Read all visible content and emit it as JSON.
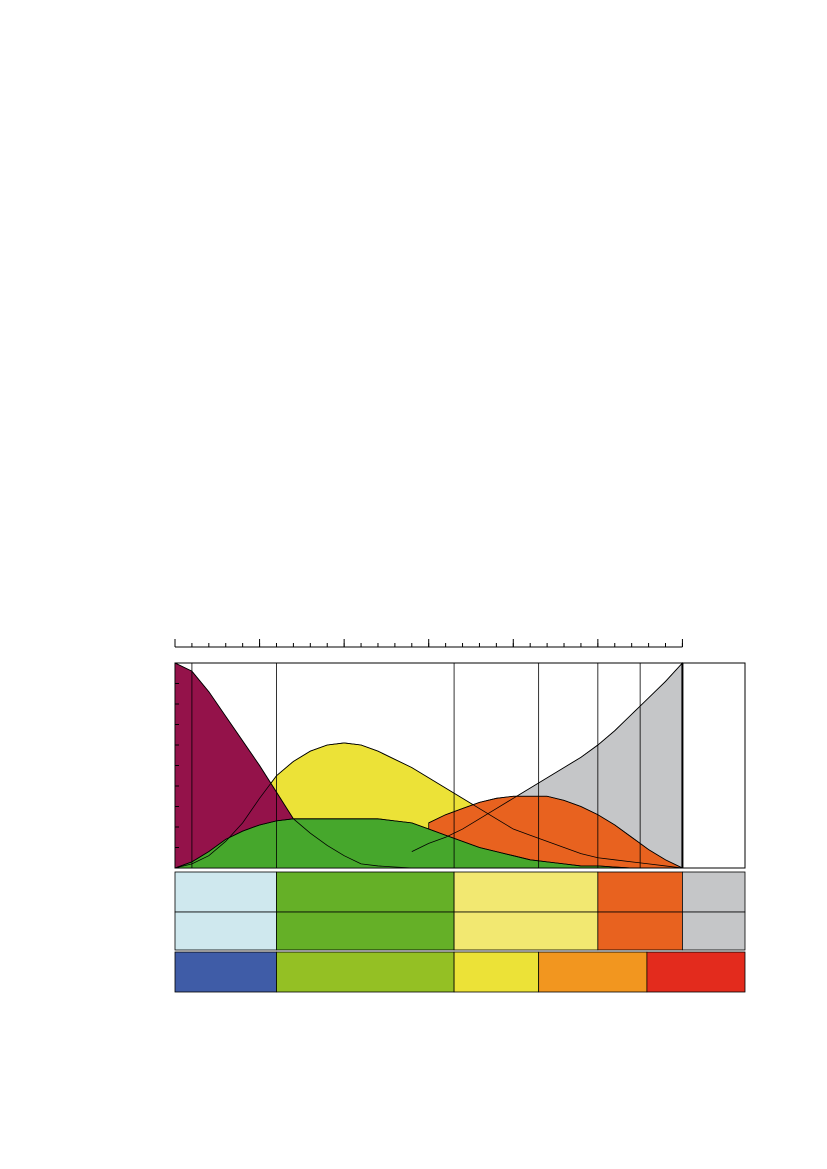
{
  "chart_data": {
    "type": "area",
    "x": [
      0,
      1,
      2,
      3,
      4,
      5,
      6,
      7,
      8,
      9,
      10,
      11,
      12,
      13,
      14,
      15,
      16,
      17,
      18,
      19,
      20,
      21,
      22,
      23,
      24,
      25,
      26,
      27,
      28,
      29,
      30
    ],
    "series": [
      {
        "color": "#c5c6c8",
        "values": [
          null,
          null,
          null,
          null,
          null,
          null,
          null,
          null,
          null,
          null,
          null,
          null,
          null,
          null,
          8,
          12,
          15,
          19,
          24,
          29,
          34,
          39,
          44,
          49,
          54,
          60,
          67,
          75,
          83,
          91,
          100
        ]
      },
      {
        "color": "#ece237",
        "values": [
          0,
          2,
          6,
          13,
          22,
          34,
          45,
          52,
          57,
          60,
          61,
          60,
          57,
          53,
          49,
          44,
          39,
          34,
          29,
          24,
          19,
          16,
          13,
          10,
          7,
          5,
          4,
          3,
          2,
          1,
          0
        ]
      },
      {
        "color": "#94124a",
        "values": [
          100,
          96,
          86,
          74,
          62,
          50,
          37,
          24,
          17,
          11,
          6,
          2,
          1,
          0.5,
          0,
          0,
          0,
          0,
          0,
          0,
          0,
          0,
          0,
          0,
          0,
          0,
          0,
          0,
          0,
          0,
          0
        ]
      },
      {
        "color": "#e8621f",
        "values": [
          null,
          null,
          null,
          null,
          null,
          null,
          null,
          null,
          null,
          null,
          null,
          null,
          null,
          null,
          null,
          22,
          26,
          29,
          32,
          34,
          35,
          35,
          35,
          33,
          30,
          26,
          21,
          15,
          9,
          4,
          0
        ]
      },
      {
        "color": "#46a72c",
        "values": [
          0,
          3,
          8,
          14,
          18,
          21,
          23,
          24,
          24,
          24,
          24,
          24,
          24,
          23,
          22,
          19,
          16,
          13,
          10,
          8,
          6,
          4,
          3,
          2,
          1,
          1,
          0.5,
          0,
          0,
          0,
          0
        ]
      }
    ],
    "xlim": [
      0,
      33.7
    ],
    "ylim": [
      0,
      100
    ],
    "xticks": [
      0,
      1,
      2,
      3,
      4,
      5,
      6,
      7,
      8,
      9,
      10,
      11,
      12,
      13,
      14,
      15,
      16,
      17,
      18,
      19,
      20,
      21,
      22,
      23,
      24,
      25,
      26,
      27,
      28,
      29,
      30
    ],
    "xticks_major": [
      0,
      5,
      10,
      15,
      20,
      25,
      30
    ],
    "yticks": [
      0,
      10,
      20,
      30,
      40,
      50,
      60,
      70,
      80,
      90,
      100
    ],
    "vlines": [
      1,
      6,
      16.5,
      21.5,
      25,
      27.5,
      30
    ],
    "bands": [
      {
        "edges": [
          0,
          6,
          16.5,
          25,
          30,
          33.7
        ],
        "colors": [
          "#cfe8ee",
          "#65b027",
          "#f2e871",
          "#e8621f",
          "#c5c6c8"
        ]
      },
      {
        "edges": [
          0,
          6,
          16.5,
          25,
          30,
          33.7
        ],
        "colors": [
          "#cfe8ee",
          "#65b027",
          "#f2e871",
          "#e8621f",
          "#c5c6c8"
        ]
      },
      {
        "edges": [
          0,
          6,
          16.5,
          21.5,
          27.9,
          33.7
        ],
        "colors": [
          "#3f5ca7",
          "#94c024",
          "#ece237",
          "#f2961f",
          "#e32b1d"
        ]
      }
    ]
  }
}
